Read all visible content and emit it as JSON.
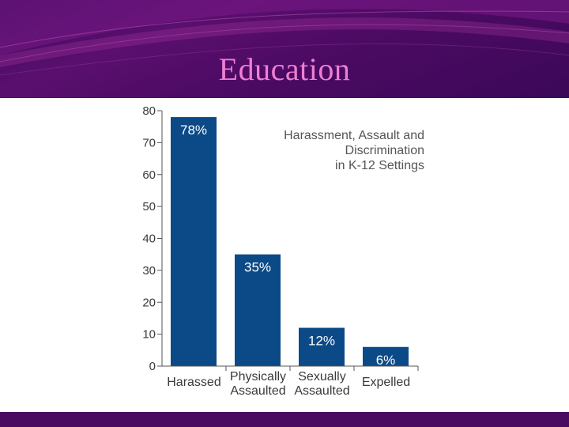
{
  "slide": {
    "title": "Education"
  },
  "colors": {
    "header_bg": "#4a0a62",
    "title_text": "#ee7fd2",
    "bar_fill": "#0b4a86",
    "axis": "#555555"
  },
  "chart_data": {
    "type": "bar",
    "title_lines": [
      "Harassment, Assault and",
      "Discrimination",
      "in K-12 Settings"
    ],
    "categories": [
      [
        "Harassed"
      ],
      [
        "Physically",
        "Assaulted"
      ],
      [
        "Sexually",
        "Assaulted"
      ],
      [
        "Expelled"
      ]
    ],
    "values": [
      78,
      35,
      12,
      6
    ],
    "value_labels": [
      "78%",
      "35%",
      "12%",
      "6%"
    ],
    "ylim": [
      0,
      80
    ],
    "yticks": [
      0,
      10,
      20,
      30,
      40,
      50,
      60,
      70,
      80
    ],
    "xlabel": "",
    "ylabel": "",
    "grid": false
  }
}
